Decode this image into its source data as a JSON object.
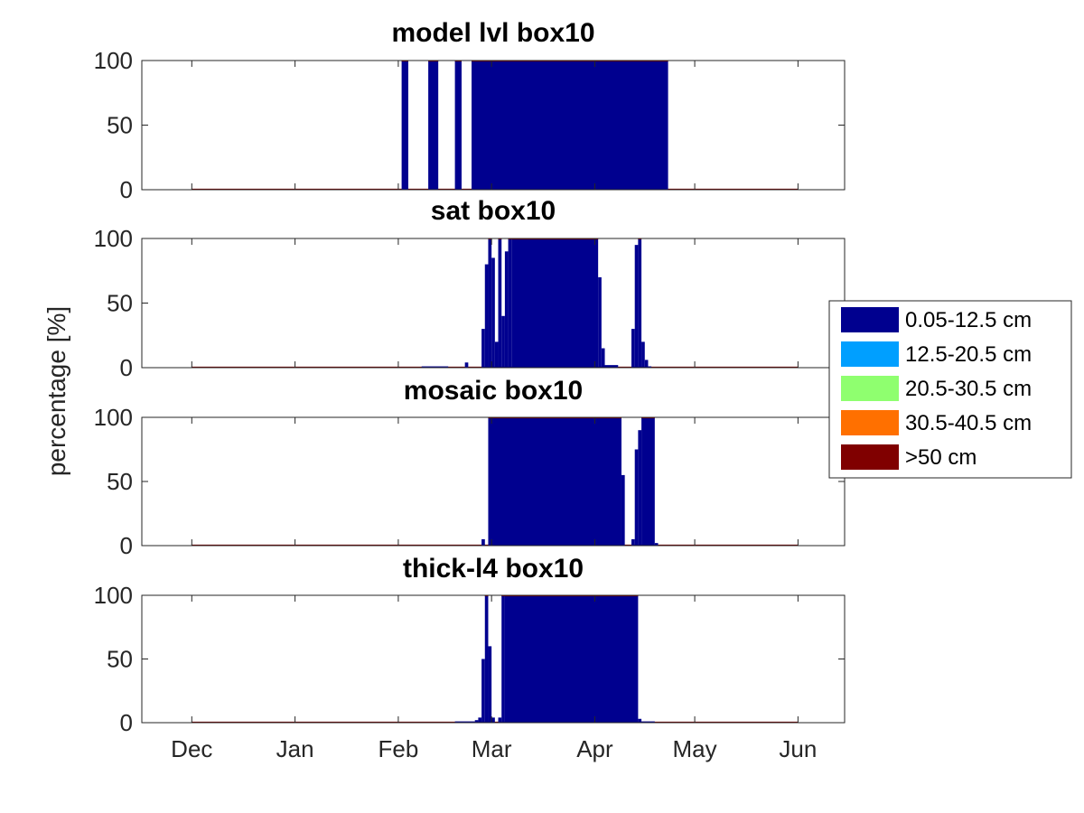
{
  "chart_data": [
    {
      "type": "bar",
      "title": "model lvl box10",
      "ylim": [
        0,
        100
      ],
      "yticks": [
        "0",
        "50",
        "100"
      ],
      "series": [
        {
          "name": "0.05-12.5 cm",
          "segments": [
            {
              "start": "Feb 02",
              "end": "Feb 04",
              "value": 100
            },
            {
              "start": "Feb 10",
              "end": "Feb 13",
              "value": 100
            },
            {
              "start": "Feb 18",
              "end": "Feb 20",
              "value": 100
            },
            {
              "start": "Feb 23",
              "end": "Apr 23",
              "value": 100
            }
          ]
        }
      ]
    },
    {
      "type": "bar",
      "title": "sat box10",
      "ylim": [
        0,
        100
      ],
      "yticks": [
        "0",
        "50",
        "100"
      ],
      "series": [
        {
          "name": "0.05-12.5 cm",
          "segments": [
            {
              "start": "Feb 08",
              "end": "Feb 16",
              "value": 1
            },
            {
              "start": "Feb 21",
              "end": "Feb 22",
              "value": 4
            },
            {
              "start": "Feb 26",
              "end": "Feb 27",
              "value": 30
            },
            {
              "start": "Feb 27",
              "end": "Feb 28",
              "value": 80
            },
            {
              "start": "Feb 28",
              "end": "Mar 01",
              "value": 100
            },
            {
              "start": "Mar 01",
              "end": "Mar 02",
              "value": 85
            },
            {
              "start": "Mar 02",
              "end": "Mar 03",
              "value": 20
            },
            {
              "start": "Mar 03",
              "end": "Mar 04",
              "value": 100
            },
            {
              "start": "Mar 04",
              "end": "Mar 05",
              "value": 40
            },
            {
              "start": "Mar 05",
              "end": "Mar 06",
              "value": 90
            },
            {
              "start": "Mar 06",
              "end": "Mar 07",
              "value": 100
            },
            {
              "start": "Mar 07",
              "end": "Apr 02",
              "value": 100
            },
            {
              "start": "Apr 02",
              "end": "Apr 03",
              "value": 70
            },
            {
              "start": "Apr 03",
              "end": "Apr 04",
              "value": 15
            },
            {
              "start": "Apr 04",
              "end": "Apr 08",
              "value": 2
            },
            {
              "start": "Apr 12",
              "end": "Apr 13",
              "value": 30
            },
            {
              "start": "Apr 13",
              "end": "Apr 14",
              "value": 95
            },
            {
              "start": "Apr 14",
              "end": "Apr 15",
              "value": 100
            },
            {
              "start": "Apr 15",
              "end": "Apr 16",
              "value": 20
            },
            {
              "start": "Apr 16",
              "end": "Apr 17",
              "value": 6
            },
            {
              "start": "Apr 17",
              "end": "Apr 18",
              "value": 1
            }
          ]
        }
      ]
    },
    {
      "type": "bar",
      "title": "mosaic box10",
      "ylim": [
        0,
        100
      ],
      "yticks": [
        "0",
        "50",
        "100"
      ],
      "series": [
        {
          "name": "0.05-12.5 cm",
          "segments": [
            {
              "start": "Feb 26",
              "end": "Feb 27",
              "value": 5
            },
            {
              "start": "Feb 28",
              "end": "Apr 09",
              "value": 100
            },
            {
              "start": "Apr 09",
              "end": "Apr 10",
              "value": 55
            },
            {
              "start": "Apr 12",
              "end": "Apr 13",
              "value": 5
            },
            {
              "start": "Apr 13",
              "end": "Apr 14",
              "value": 75
            },
            {
              "start": "Apr 14",
              "end": "Apr 15",
              "value": 90
            },
            {
              "start": "Apr 15",
              "end": "Apr 19",
              "value": 100
            },
            {
              "start": "Apr 19",
              "end": "Apr 20",
              "value": 2
            }
          ]
        }
      ]
    },
    {
      "type": "bar",
      "title": "thick-l4 box10",
      "ylim": [
        0,
        100
      ],
      "yticks": [
        "0",
        "50",
        "100"
      ],
      "series": [
        {
          "name": "0.05-12.5 cm",
          "segments": [
            {
              "start": "Feb 18",
              "end": "Feb 24",
              "value": 1
            },
            {
              "start": "Feb 24",
              "end": "Feb 25",
              "value": 2
            },
            {
              "start": "Feb 25",
              "end": "Feb 26",
              "value": 4
            },
            {
              "start": "Feb 26",
              "end": "Feb 27",
              "value": 50
            },
            {
              "start": "Feb 27",
              "end": "Feb 28",
              "value": 100
            },
            {
              "start": "Feb 28",
              "end": "Mar 01",
              "value": 60
            },
            {
              "start": "Mar 01",
              "end": "Mar 02",
              "value": 4
            },
            {
              "start": "Mar 03",
              "end": "Mar 04",
              "value": 4
            },
            {
              "start": "Mar 04",
              "end": "Mar 05",
              "value": 100
            },
            {
              "start": "Mar 05",
              "end": "Apr 14",
              "value": 100
            },
            {
              "start": "Apr 14",
              "end": "Apr 15",
              "value": 3
            },
            {
              "start": "Apr 15",
              "end": "Apr 19",
              "value": 1
            }
          ]
        }
      ]
    }
  ],
  "shared": {
    "ylabel": "percentage [%]",
    "xtick_labels": [
      "Dec",
      "Jan",
      "Feb",
      "Mar",
      "Apr",
      "May",
      "Jun"
    ],
    "xtick_dates": [
      "Dec 01",
      "Jan 01",
      "Feb 01",
      "Mar 01",
      "Apr 01",
      "May 01",
      "Jun 01"
    ],
    "x_range": [
      "Nov 16",
      "Jun 15"
    ],
    "legend": {
      "placement": "right",
      "entries": [
        {
          "label": "0.05-12.5 cm",
          "color": "#00008f"
        },
        {
          "label": "12.5-20.5 cm",
          "color": "#009fff"
        },
        {
          "label": "20.5-30.5 cm",
          "color": "#8fff6f"
        },
        {
          "label": "30.5-40.5 cm",
          "color": "#ff7000"
        },
        {
          "label": ">50 cm",
          "color": "#800000"
        }
      ]
    },
    "baseline_color": "#800000"
  }
}
